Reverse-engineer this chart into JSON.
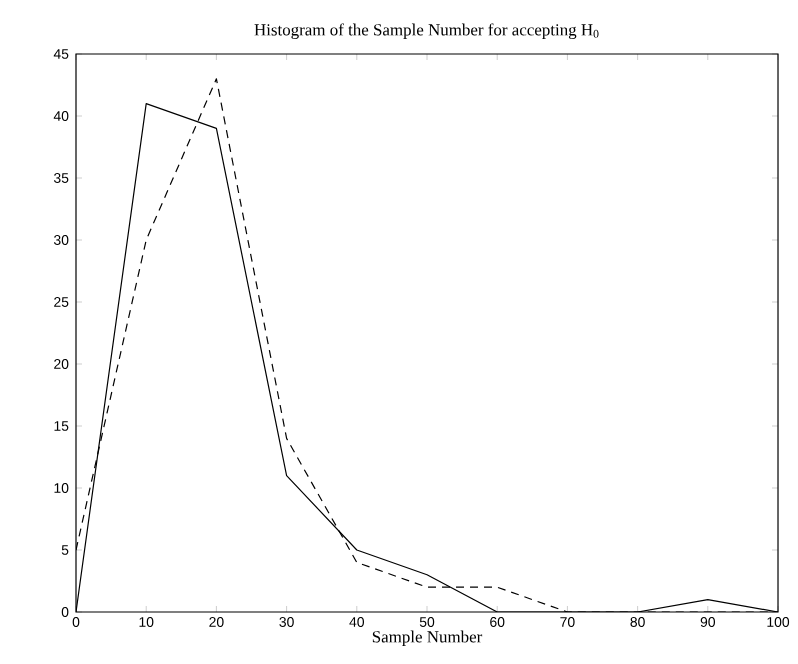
{
  "chart_data": {
    "type": "line",
    "title": "Histogram of the Sample Number for accepting H$_{0}$",
    "xlabel": "Sample Number",
    "x": [
      0,
      10,
      20,
      30,
      40,
      50,
      60,
      70,
      80,
      90,
      100
    ],
    "series": [
      {
        "color": "#000000",
        "line_style": "solid",
        "values": [
          0,
          41,
          39,
          11,
          5,
          3,
          0,
          0,
          0,
          1,
          0
        ]
      },
      {
        "color": "#000000",
        "line_style": "dashed",
        "values": [
          5,
          30,
          43,
          14,
          4,
          2,
          2,
          0,
          0,
          0,
          0
        ]
      }
    ],
    "xlim": [
      0,
      100
    ],
    "ylim": [
      0,
      45
    ],
    "xticks": [
      0,
      10,
      20,
      30,
      40,
      50,
      60,
      70,
      80,
      90,
      100
    ],
    "yticks": [
      0,
      5,
      10,
      15,
      20,
      25,
      30,
      35,
      40,
      45
    ],
    "grid": false,
    "marker": "none"
  }
}
